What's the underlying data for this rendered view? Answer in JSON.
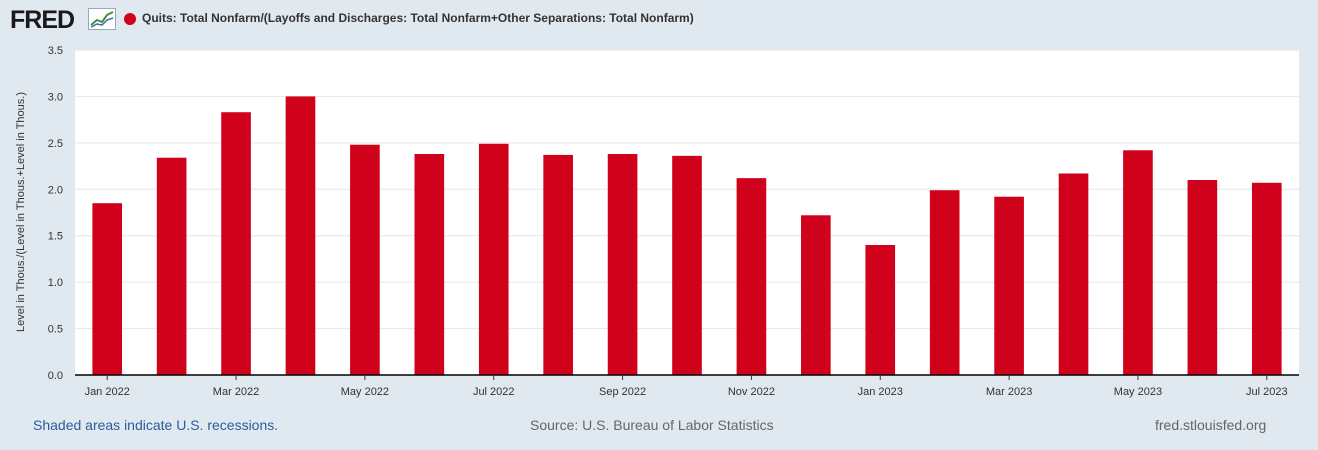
{
  "header": {
    "logo": "FRED",
    "series_label": "Quits: Total Nonfarm/(Layoffs and Discharges: Total Nonfarm+Other Separations: Total Nonfarm)",
    "series_color": "#d0021b"
  },
  "chart_data": {
    "type": "bar",
    "title": "Quits: Total Nonfarm/(Layoffs and Discharges: Total Nonfarm+Other Separations: Total Nonfarm)",
    "xlabel": "",
    "ylabel": "Level in Thous./(Level in Thous.+Level in Thous.)",
    "ylim": [
      0,
      3.5
    ],
    "yticks": [
      "0.0",
      "0.5",
      "1.0",
      "1.5",
      "2.0",
      "2.5",
      "3.0",
      "3.5"
    ],
    "categories": [
      "Jan 2022",
      "Feb 2022",
      "Mar 2022",
      "Apr 2022",
      "May 2022",
      "Jun 2022",
      "Jul 2022",
      "Aug 2022",
      "Sep 2022",
      "Oct 2022",
      "Nov 2022",
      "Dec 2022",
      "Jan 2023",
      "Feb 2023",
      "Mar 2023",
      "Apr 2023",
      "May 2023",
      "Jun 2023",
      "Jul 2023"
    ],
    "xtick_labels": [
      "Jan 2022",
      "",
      "Mar 2022",
      "",
      "May 2022",
      "",
      "Jul 2022",
      "",
      "Sep 2022",
      "",
      "Nov 2022",
      "",
      "Jan 2023",
      "",
      "Mar 2023",
      "",
      "May 2023",
      "",
      "Jul 2023"
    ],
    "values": [
      1.85,
      2.34,
      2.83,
      3.0,
      2.48,
      2.38,
      2.49,
      2.37,
      2.38,
      2.36,
      2.12,
      1.72,
      1.4,
      1.99,
      1.92,
      2.17,
      2.42,
      2.1,
      2.07
    ],
    "color": "#d0021b",
    "grid": true
  },
  "footer": {
    "recessions_note": "Shaded areas indicate U.S. recessions.",
    "source": "Source: U.S. Bureau of Labor Statistics",
    "site": "fred.stlouisfed.org"
  }
}
